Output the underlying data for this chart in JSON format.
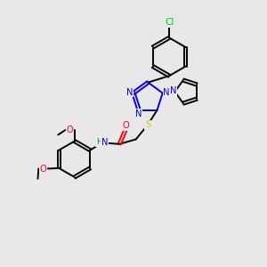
{
  "bg_color": "#e8e8e8",
  "bond_color": "#000000",
  "atom_colors": {
    "N": "#0000ff",
    "O": "#ff0000",
    "S": "#cccc00",
    "Cl": "#00cc00",
    "C": "#000000",
    "H": "#008080"
  },
  "lw": 1.4,
  "fs": 7.2
}
